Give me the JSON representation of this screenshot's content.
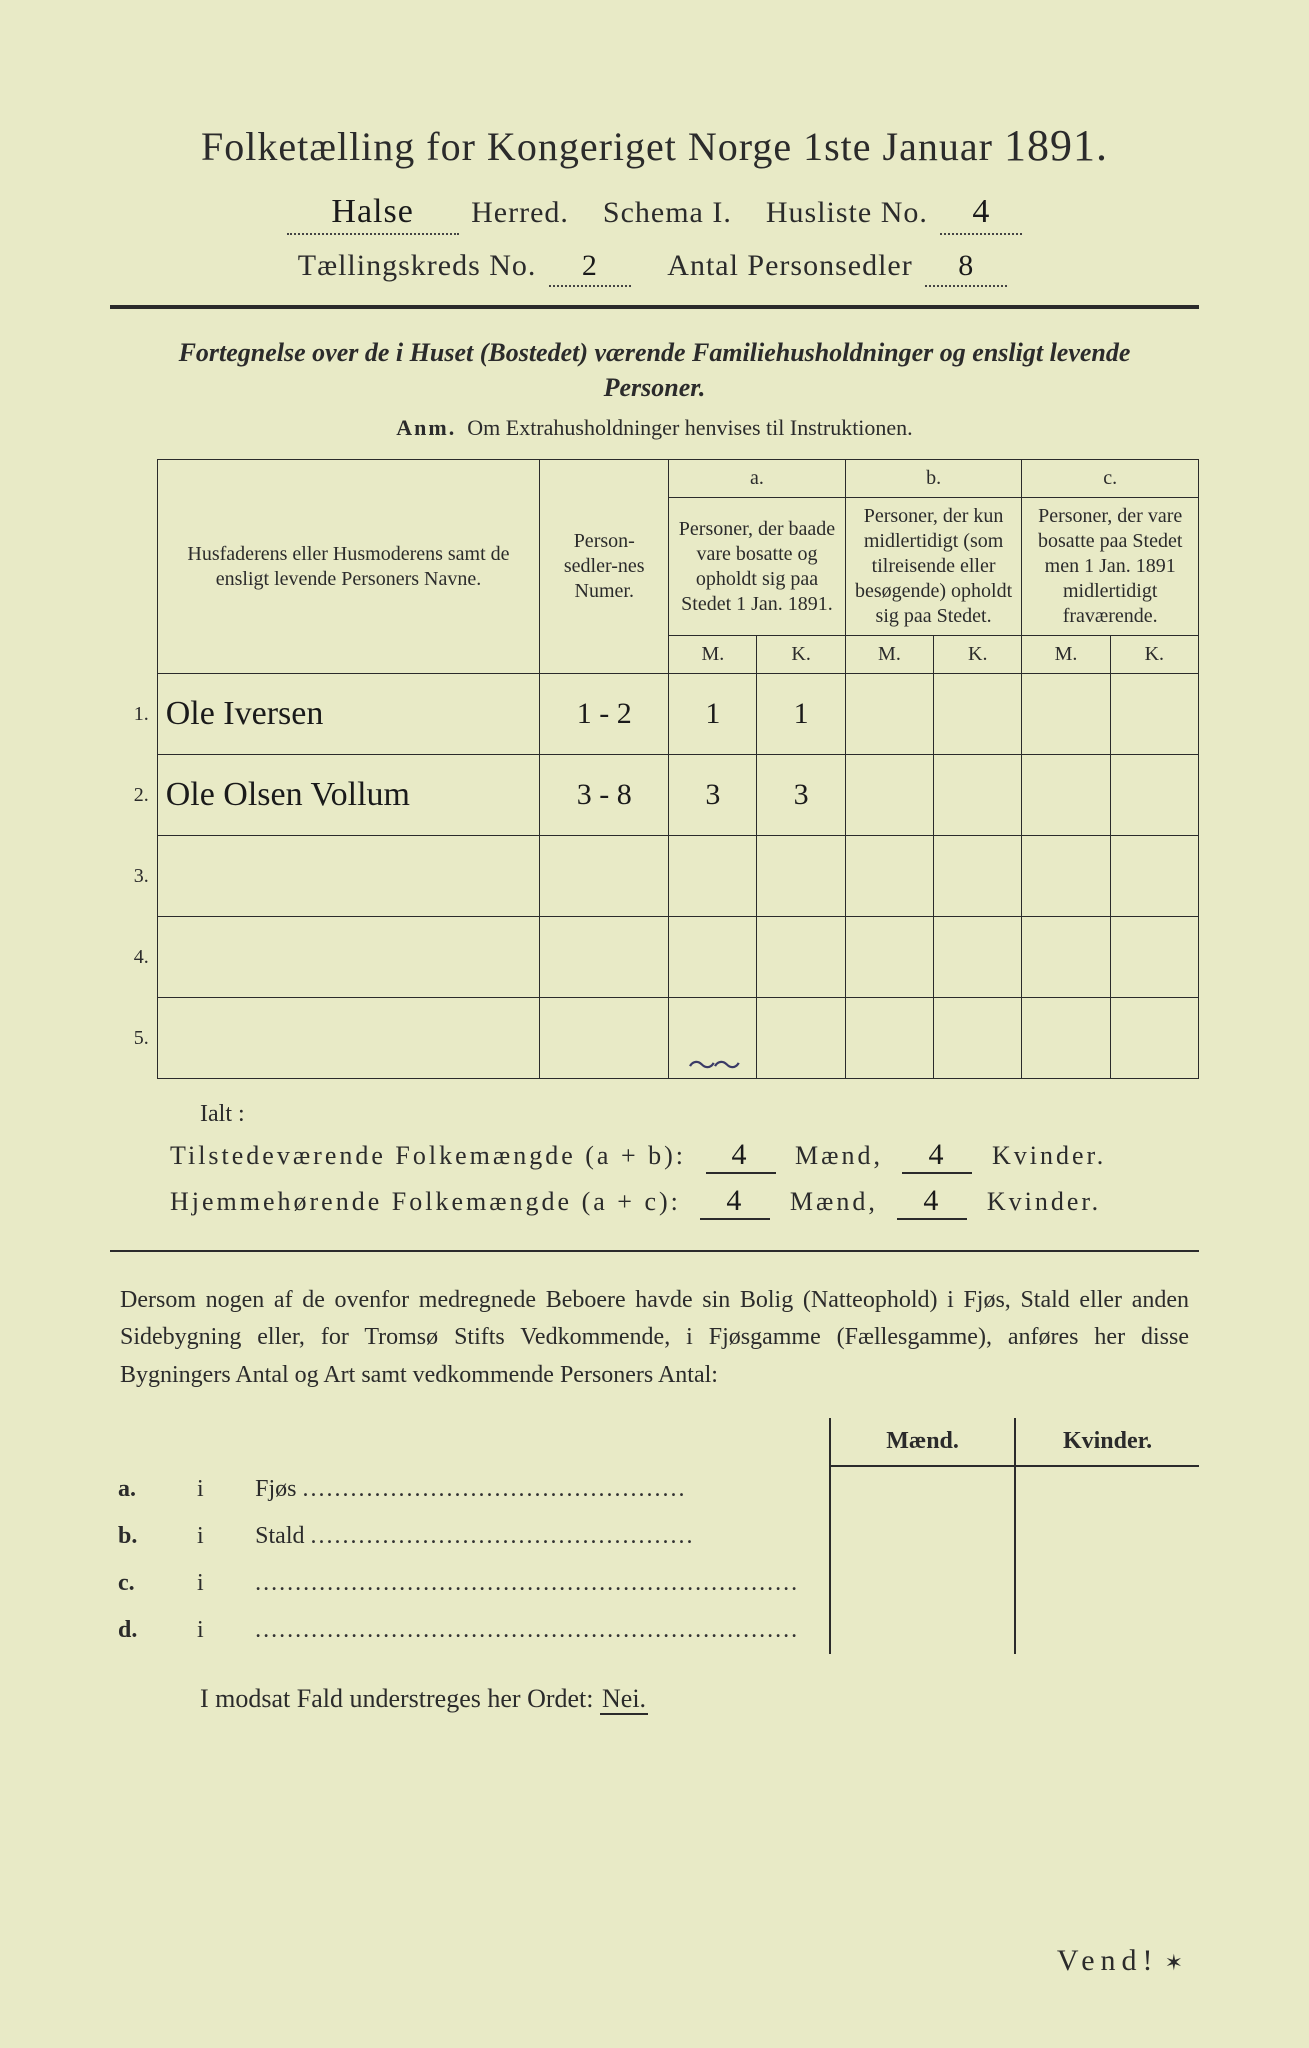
{
  "colors": {
    "paper": "#e8eac6",
    "ink": "#2b2b2b",
    "handwriting": "#1a1a1a"
  },
  "header": {
    "title_prefix": "Folketælling for Kongeriget Norge 1ste Januar",
    "year": "1891.",
    "herred_value": "Halse",
    "herred_label": "Herred.",
    "schema_label": "Schema I.",
    "husliste_label": "Husliste No.",
    "husliste_value": "4",
    "kreds_label": "Tællingskreds No.",
    "kreds_value": "2",
    "antal_label": "Antal Personsedler",
    "antal_value": "8"
  },
  "subtitle": "Fortegnelse over de i Huset (Bostedet) værende Familiehusholdninger og ensligt levende Personer.",
  "anm_label": "Anm.",
  "anm_text": "Om Extrahusholdninger henvises til Instruktionen.",
  "table": {
    "col_names_header": "Husfaderens eller Husmoderens samt de ensligt levende Personers Navne.",
    "col_num_header": "Person-sedler-nes Numer.",
    "col_a_letter": "a.",
    "col_a_header": "Personer, der baade vare bosatte og opholdt sig paa Stedet 1 Jan. 1891.",
    "col_b_letter": "b.",
    "col_b_header": "Personer, der kun midlertidigt (som tilreisende eller besøgende) opholdt sig paa Stedet.",
    "col_c_letter": "c.",
    "col_c_header": "Personer, der vare bosatte paa Stedet men 1 Jan. 1891 midlertidigt fraværende.",
    "mk_M": "M.",
    "mk_K": "K.",
    "row_labels": [
      "1.",
      "2.",
      "3.",
      "4.",
      "5."
    ],
    "rows": [
      {
        "name": "Ole Iversen",
        "num": "1 - 2",
        "aM": "1",
        "aK": "1",
        "bM": "",
        "bK": "",
        "cM": "",
        "cK": ""
      },
      {
        "name": "Ole Olsen Vollum",
        "num": "3 - 8",
        "aM": "3",
        "aK": "3",
        "bM": "",
        "bK": "",
        "cM": "",
        "cK": ""
      },
      {
        "name": "",
        "num": "",
        "aM": "",
        "aK": "",
        "bM": "",
        "bK": "",
        "cM": "",
        "cK": ""
      },
      {
        "name": "",
        "num": "",
        "aM": "",
        "aK": "",
        "bM": "",
        "bK": "",
        "cM": "",
        "cK": ""
      },
      {
        "name": "",
        "num": "",
        "aM": "",
        "aK": "",
        "bM": "",
        "bK": "",
        "cM": "",
        "cK": ""
      }
    ],
    "squiggle": "～～"
  },
  "totals": {
    "ialt": "Ialt :",
    "line1_label": "Tilstedeværende Folkemængde (a + b):",
    "line2_label": "Hjemmehørende Folkemængde (a + c):",
    "maend": "Mænd,",
    "kvinder": "Kvinder.",
    "t_m": "4",
    "t_k": "4",
    "h_m": "4",
    "h_k": "4"
  },
  "paragraph": "Dersom nogen af de ovenfor medregnede Beboere havde sin Bolig (Natteophold) i Fjøs, Stald eller anden Sidebygning eller, for Tromsø Stifts Vedkommende, i Fjøsgamme (Fællesgamme), anføres her disse Bygningers Antal og Art samt vedkommende Personers Antal:",
  "lower": {
    "hdr_m": "Mænd.",
    "hdr_k": "Kvinder.",
    "rows": [
      {
        "lbl": "a.",
        "i": "i",
        "name": "Fjøs",
        "dots": "................................................"
      },
      {
        "lbl": "b.",
        "i": "i",
        "name": "Stald",
        "dots": "................................................"
      },
      {
        "lbl": "c.",
        "i": "i",
        "name": "",
        "dots": "...................................................................."
      },
      {
        "lbl": "d.",
        "i": "i",
        "name": "",
        "dots": "...................................................................."
      }
    ]
  },
  "nei_line_prefix": "I modsat Fald understreges her Ordet:",
  "nei_word": "Nei.",
  "vend": "Vend!"
}
